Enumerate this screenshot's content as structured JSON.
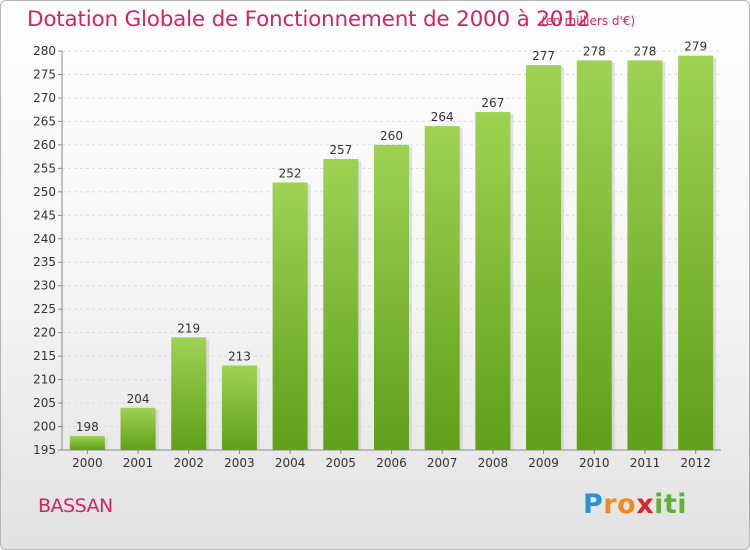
{
  "header": {
    "title": "Dotation Globale de Fonctionnement de 2000 à 2012",
    "unit": "(en milliers d'€)"
  },
  "footer": {
    "commune": "BASSAN",
    "logo_icon": "proxiti-logo",
    "logo_text": "Proxiti"
  },
  "colors": {
    "title": "#d6235f",
    "bar_top": "#9fd253",
    "bar_bottom": "#5f9f19",
    "logo": [
      "#2d8fd6",
      "#f08a1c",
      "#d9262e",
      "#5fb233"
    ]
  },
  "chart_data": {
    "type": "bar",
    "title": "Dotation Globale de Fonctionnement de 2000 à 2012",
    "subtitle": "(en milliers d'€)",
    "xlabel": "",
    "ylabel": "",
    "categories": [
      "2000",
      "2001",
      "2002",
      "2003",
      "2004",
      "2005",
      "2006",
      "2007",
      "2008",
      "2009",
      "2010",
      "2011",
      "2012"
    ],
    "values": [
      198,
      204,
      219,
      213,
      252,
      257,
      260,
      264,
      267,
      277,
      278,
      278,
      279
    ],
    "ylim": [
      195,
      280
    ],
    "ytick_step": 5,
    "grid": true,
    "data_labels": true
  }
}
